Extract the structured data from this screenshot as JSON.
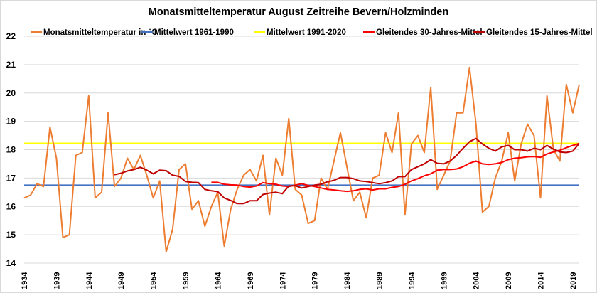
{
  "chart_data": {
    "type": "line",
    "title": "Monatsmitteltemperatur August Zeitreihe Bevern/Holzminden",
    "xlabel": "",
    "ylabel": "",
    "ylim": [
      14,
      22
    ],
    "yticks": [
      "14",
      "15",
      "16",
      "17",
      "18",
      "19",
      "20",
      "21",
      "22"
    ],
    "xlim": [
      1934,
      2020
    ],
    "xticks": [
      "1934",
      "1939",
      "1944",
      "1949",
      "1954",
      "1959",
      "1964",
      "1969",
      "1974",
      "1979",
      "1984",
      "1989",
      "1994",
      "1999",
      "2004",
      "2009",
      "2014",
      "2019"
    ],
    "grid": true,
    "legend_position": "top",
    "x": [
      1934,
      1935,
      1936,
      1937,
      1938,
      1939,
      1940,
      1941,
      1942,
      1943,
      1944,
      1945,
      1946,
      1947,
      1948,
      1949,
      1950,
      1951,
      1952,
      1953,
      1954,
      1955,
      1956,
      1957,
      1958,
      1959,
      1960,
      1961,
      1962,
      1963,
      1964,
      1965,
      1966,
      1967,
      1968,
      1969,
      1970,
      1971,
      1972,
      1973,
      1974,
      1975,
      1976,
      1977,
      1978,
      1979,
      1980,
      1981,
      1982,
      1983,
      1984,
      1985,
      1986,
      1987,
      1988,
      1989,
      1990,
      1991,
      1992,
      1993,
      1994,
      1995,
      1996,
      1997,
      1998,
      1999,
      2000,
      2001,
      2002,
      2003,
      2004,
      2005,
      2006,
      2007,
      2008,
      2009,
      2010,
      2011,
      2012,
      2013,
      2014,
      2015,
      2016,
      2017,
      2018,
      2019,
      2020
    ],
    "series": [
      {
        "name": "Monatsmitteltemperatur in °C",
        "color": "#ED7D31",
        "values": [
          16.3,
          16.4,
          16.8,
          16.7,
          18.8,
          17.7,
          14.9,
          15.0,
          17.8,
          17.9,
          19.9,
          16.3,
          16.5,
          19.3,
          16.7,
          17.0,
          17.7,
          17.3,
          17.8,
          17.1,
          16.3,
          16.9,
          14.4,
          15.2,
          17.3,
          17.5,
          15.9,
          16.2,
          15.3,
          16.0,
          16.5,
          14.6,
          15.9,
          16.6,
          17.1,
          17.3,
          16.9,
          17.8,
          15.7,
          17.7,
          17.1,
          19.1,
          16.6,
          16.4,
          15.4,
          15.5,
          17.0,
          16.6,
          17.6,
          18.6,
          17.4,
          16.2,
          16.5,
          15.6,
          17.0,
          17.1,
          18.6,
          17.9,
          19.3,
          15.7,
          18.2,
          18.5,
          17.9,
          20.2,
          16.6,
          17.1,
          17.6,
          19.3,
          19.3,
          20.9,
          18.9,
          15.8,
          16.0,
          17.0,
          17.6,
          18.6,
          16.9,
          18.2,
          18.9,
          18.5,
          16.3,
          19.9,
          18.0,
          17.6,
          20.3,
          19.3,
          20.3
        ]
      },
      {
        "name": "Mittelwert 1961-1990",
        "color": "#4472C4",
        "constant": 16.75
      },
      {
        "name": "Mittelwert 1991-2020",
        "color": "#FFFF00",
        "constant": 18.22
      },
      {
        "name": "Gleitendes 30-Jahres-Mittel",
        "color": "#FF0000",
        "values": [
          null,
          null,
          null,
          null,
          null,
          null,
          null,
          null,
          null,
          null,
          null,
          null,
          null,
          null,
          null,
          null,
          null,
          null,
          null,
          null,
          null,
          null,
          null,
          null,
          null,
          null,
          null,
          null,
          null,
          16.85,
          16.85,
          16.78,
          16.76,
          16.75,
          16.7,
          16.68,
          16.72,
          16.84,
          16.8,
          16.78,
          16.72,
          16.7,
          16.75,
          16.8,
          16.74,
          16.7,
          16.65,
          16.6,
          16.58,
          16.55,
          16.53,
          16.55,
          16.6,
          16.62,
          16.58,
          16.62,
          16.62,
          16.67,
          16.7,
          16.78,
          16.9,
          16.98,
          17.08,
          17.15,
          17.28,
          17.3,
          17.3,
          17.32,
          17.4,
          17.52,
          17.6,
          17.5,
          17.48,
          17.5,
          17.55,
          17.65,
          17.7,
          17.72,
          17.75,
          17.76,
          17.73,
          17.85,
          17.92,
          17.98,
          18.07,
          18.15,
          18.22
        ]
      },
      {
        "name": "Gleitendes 15-Jahres-Mittel",
        "color": "#C00000",
        "values": [
          null,
          null,
          null,
          null,
          null,
          null,
          null,
          null,
          null,
          null,
          null,
          null,
          null,
          null,
          17.12,
          17.17,
          17.25,
          17.3,
          17.38,
          17.28,
          17.15,
          17.28,
          17.26,
          17.1,
          17.06,
          16.88,
          16.85,
          16.84,
          16.6,
          16.55,
          16.52,
          16.3,
          16.21,
          16.1,
          16.1,
          16.2,
          16.2,
          16.42,
          16.47,
          16.5,
          16.45,
          16.72,
          16.73,
          16.65,
          16.7,
          16.75,
          16.78,
          16.87,
          16.92,
          17.02,
          17.02,
          16.98,
          16.9,
          16.88,
          16.84,
          16.8,
          16.84,
          16.9,
          17.05,
          17.05,
          17.3,
          17.4,
          17.5,
          17.65,
          17.52,
          17.5,
          17.6,
          17.8,
          18.05,
          18.28,
          18.4,
          18.2,
          18.05,
          17.95,
          18.1,
          18.15,
          18.0,
          18.0,
          17.95,
          18.05,
          18.0,
          18.15,
          18.02,
          17.92,
          17.9,
          17.95,
          18.22
        ]
      }
    ]
  }
}
